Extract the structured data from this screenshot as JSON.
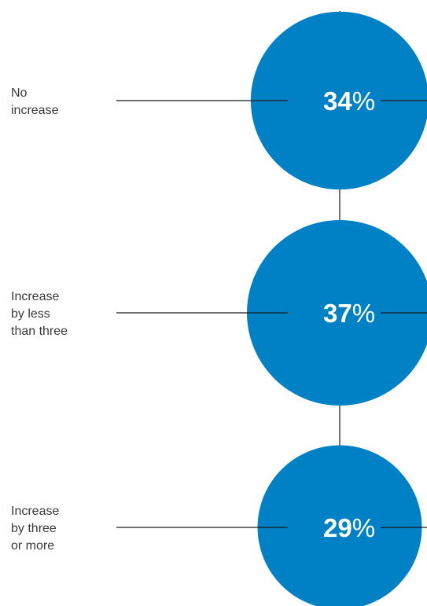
{
  "chart_data": {
    "type": "bubble",
    "unit": "%",
    "categories": [
      [
        "No",
        "increase"
      ],
      [
        "Increase",
        "by less",
        "than three"
      ],
      [
        "Increase",
        "by three",
        "or more"
      ]
    ],
    "values": [
      34,
      37,
      29
    ]
  },
  "colors": {
    "bubble": "#0081C6",
    "line": "#1a1a1a",
    "text": "#3a3a3a",
    "value_text": "#ffffff"
  }
}
